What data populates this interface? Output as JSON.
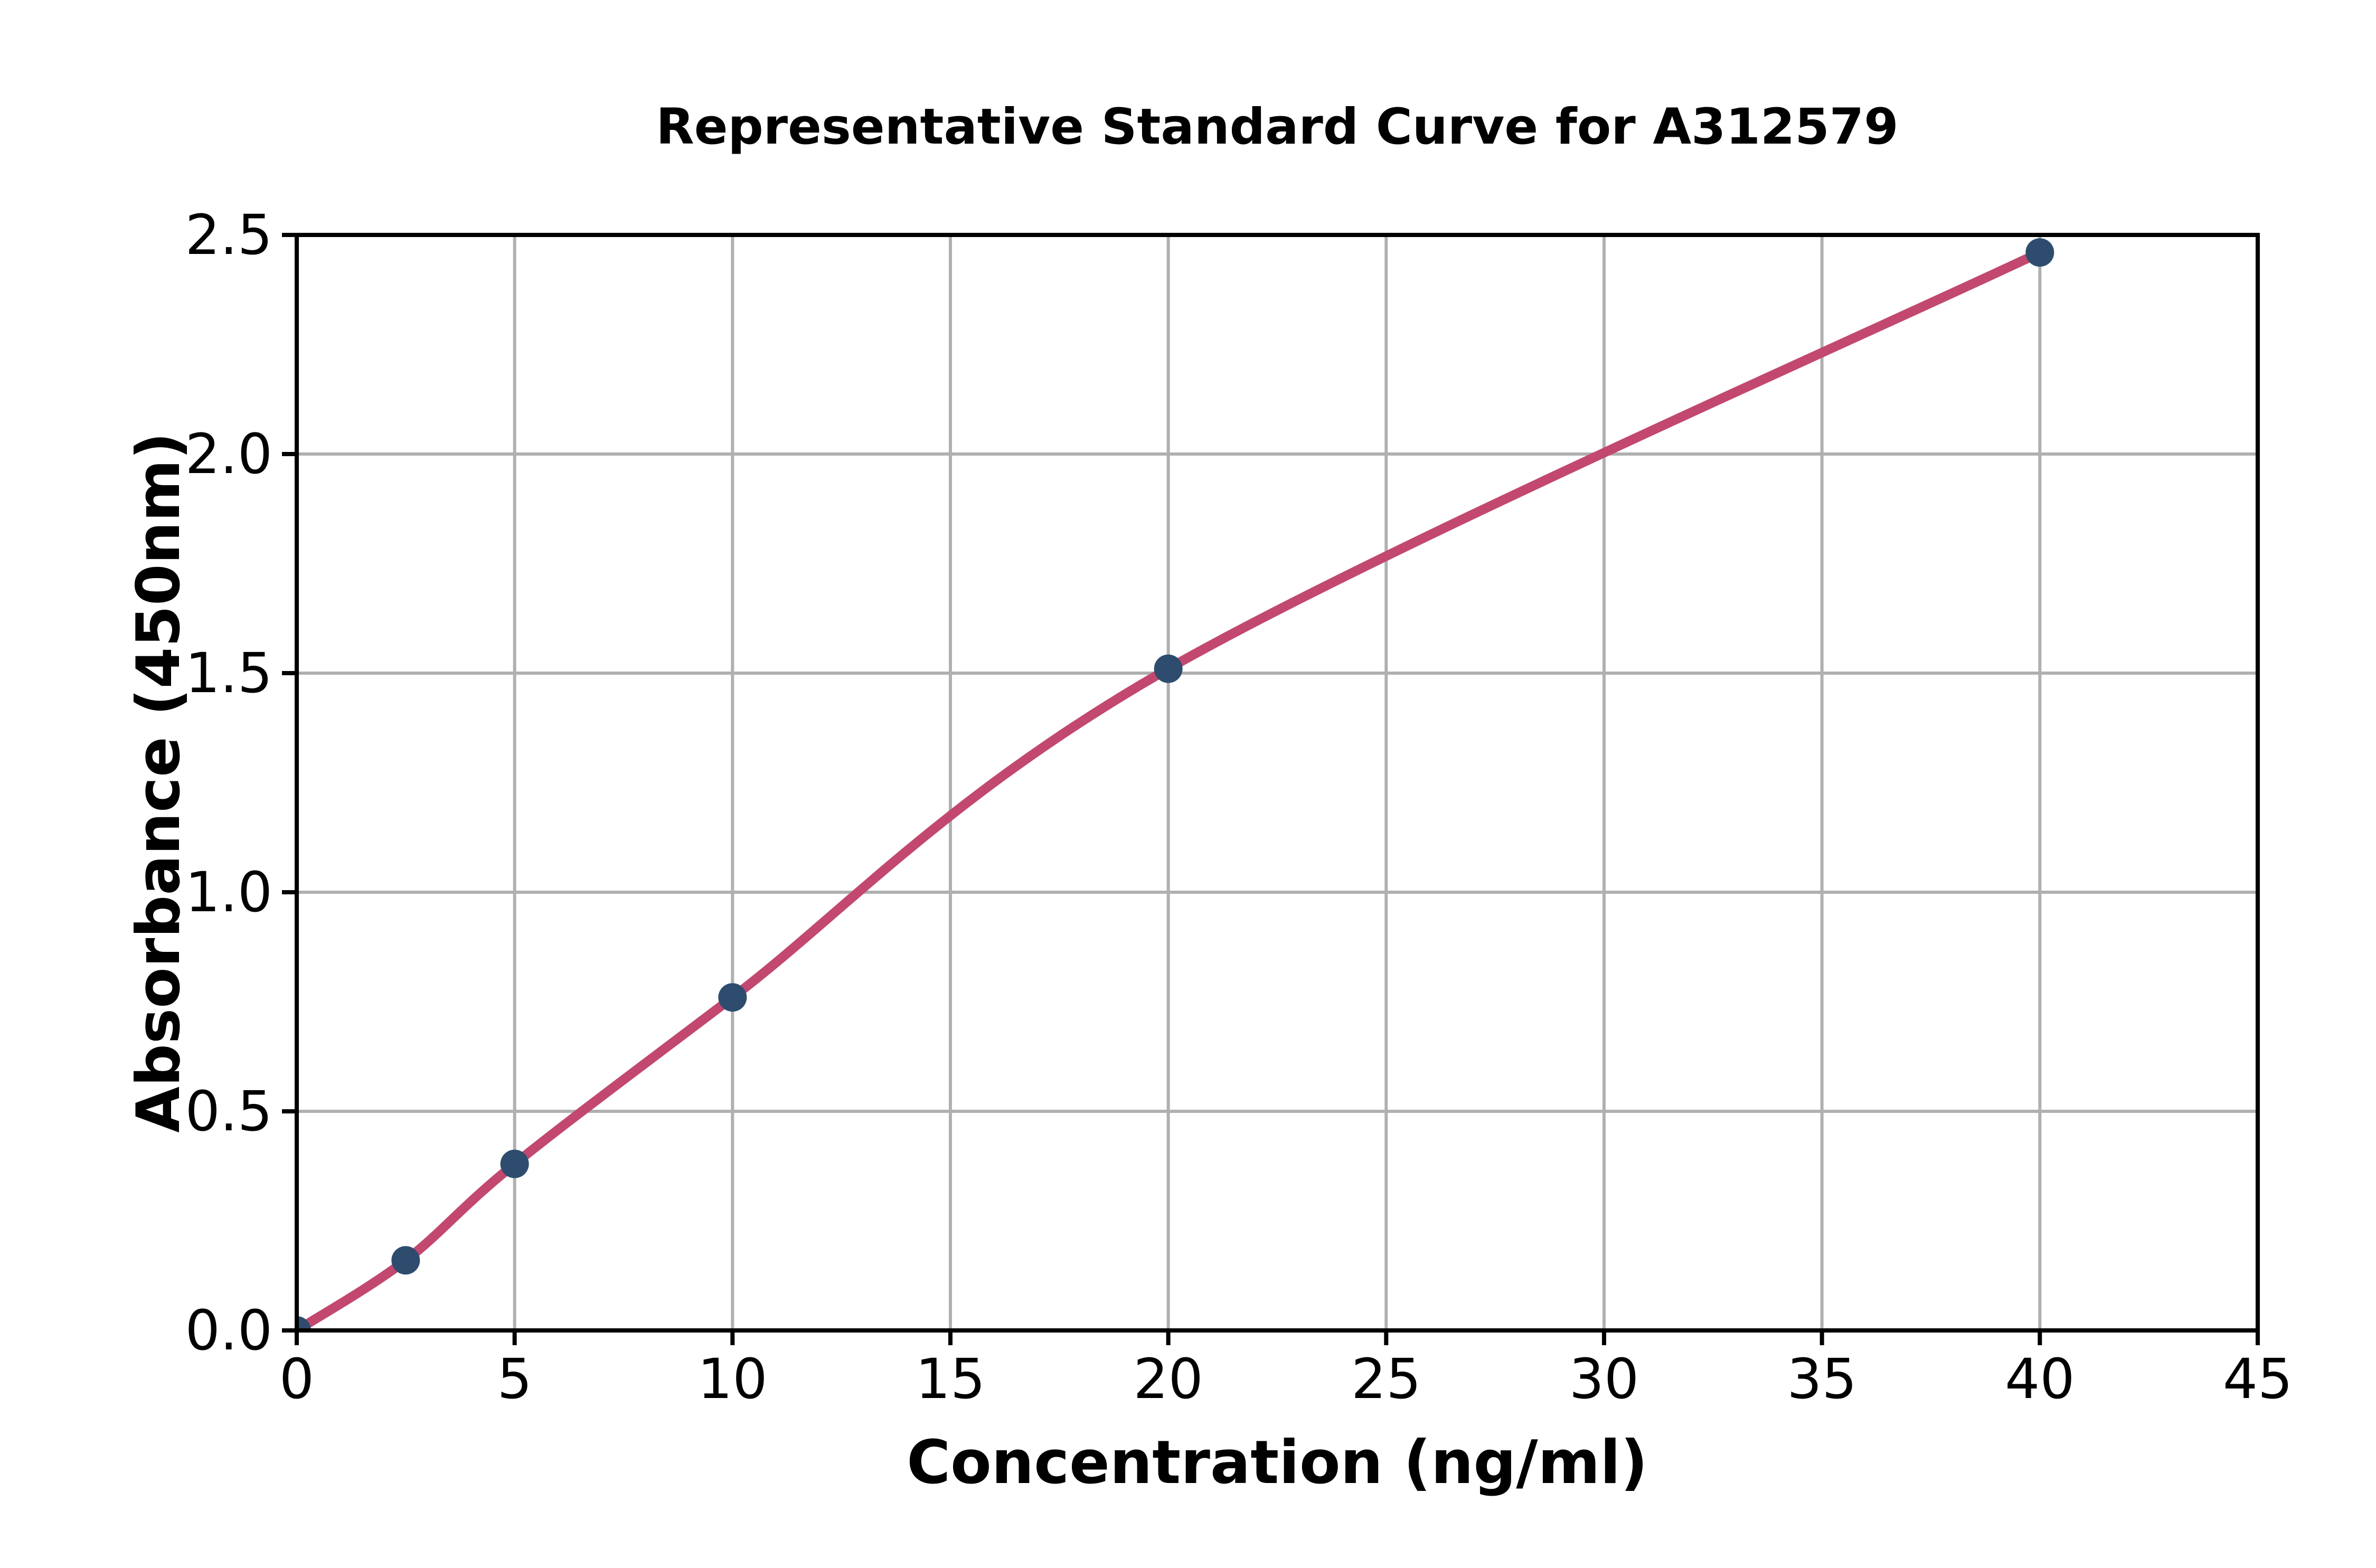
{
  "figure": {
    "background": "#ffffff"
  },
  "chart_data": {
    "type": "scatter",
    "title": "Representative Standard Curve for A312579",
    "xlabel": "Concentration (ng/ml)",
    "ylabel": "Absorbance (450nm)",
    "xlim": [
      0,
      45
    ],
    "ylim": [
      0,
      2.5
    ],
    "grid": true,
    "legend": false,
    "x_ticks": {
      "values": [
        0,
        5,
        10,
        15,
        20,
        25,
        30,
        35,
        40,
        45
      ],
      "labels": [
        "0",
        "5",
        "10",
        "15",
        "20",
        "25",
        "30",
        "35",
        "40",
        "45"
      ]
    },
    "y_ticks": {
      "values": [
        0,
        0.5,
        1.0,
        1.5,
        2.0,
        2.5
      ],
      "labels": [
        "0.0",
        "0.5",
        "1.0",
        "1.5",
        "2.0",
        "2.5"
      ]
    },
    "series": [
      {
        "name": "standard-points",
        "type": "scatter",
        "marker": "circle",
        "color": "#2e4d6e",
        "x": [
          0,
          2.5,
          5,
          10,
          20,
          40
        ],
        "y": [
          0.0,
          0.16,
          0.38,
          0.76,
          1.51,
          2.46
        ]
      },
      {
        "name": "fit-curve",
        "type": "line",
        "color": "#c2486f",
        "x": [
          0,
          2.5,
          5,
          10,
          20,
          40
        ],
        "y": [
          0.0,
          0.16,
          0.38,
          0.76,
          1.51,
          2.46
        ]
      }
    ],
    "colors": {
      "marker": "#2e4d6e",
      "line": "#c2486f",
      "grid": "#b0b0b0",
      "spine": "#000000",
      "text": "#000000"
    }
  }
}
